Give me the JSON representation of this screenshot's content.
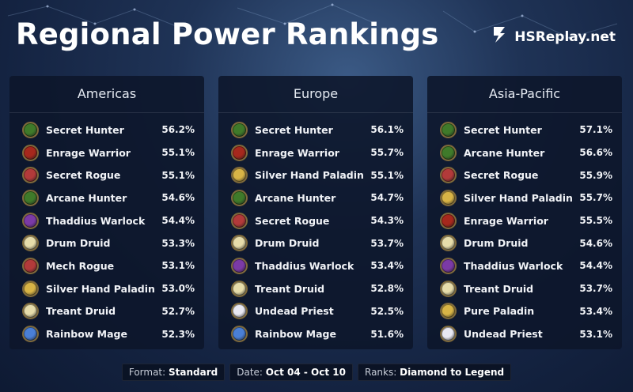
{
  "title": "Regional Power Rankings",
  "brand": {
    "name": "HSReplay.net",
    "icon": "hsreplay-logo-icon"
  },
  "colors": {
    "hunter": "#3f7a2a",
    "warrior": "#a6281d",
    "rogue": "#b23a3a",
    "warlock": "#7b3aa6",
    "druid": "#e6dcaa",
    "paladin": "#d8b446",
    "mage": "#4a7fd6",
    "priest": "#e8e8f2"
  },
  "regions": [
    {
      "name": "Americas",
      "decks": [
        {
          "name": "Secret Hunter",
          "pct": "56.2%",
          "class": "hunter"
        },
        {
          "name": "Enrage Warrior",
          "pct": "55.1%",
          "class": "warrior"
        },
        {
          "name": "Secret Rogue",
          "pct": "55.1%",
          "class": "rogue"
        },
        {
          "name": "Arcane Hunter",
          "pct": "54.6%",
          "class": "hunter"
        },
        {
          "name": "Thaddius Warlock",
          "pct": "54.4%",
          "class": "warlock"
        },
        {
          "name": "Drum Druid",
          "pct": "53.3%",
          "class": "druid"
        },
        {
          "name": "Mech Rogue",
          "pct": "53.1%",
          "class": "rogue"
        },
        {
          "name": "Silver Hand Paladin",
          "pct": "53.0%",
          "class": "paladin"
        },
        {
          "name": "Treant Druid",
          "pct": "52.7%",
          "class": "druid"
        },
        {
          "name": "Rainbow Mage",
          "pct": "52.3%",
          "class": "mage"
        }
      ]
    },
    {
      "name": "Europe",
      "decks": [
        {
          "name": "Secret Hunter",
          "pct": "56.1%",
          "class": "hunter"
        },
        {
          "name": "Enrage Warrior",
          "pct": "55.7%",
          "class": "warrior"
        },
        {
          "name": "Silver Hand Paladin",
          "pct": "55.1%",
          "class": "paladin"
        },
        {
          "name": "Arcane Hunter",
          "pct": "54.7%",
          "class": "hunter"
        },
        {
          "name": "Secret Rogue",
          "pct": "54.3%",
          "class": "rogue"
        },
        {
          "name": "Drum Druid",
          "pct": "53.7%",
          "class": "druid"
        },
        {
          "name": "Thaddius Warlock",
          "pct": "53.4%",
          "class": "warlock"
        },
        {
          "name": "Treant Druid",
          "pct": "52.8%",
          "class": "druid"
        },
        {
          "name": "Undead Priest",
          "pct": "52.5%",
          "class": "priest"
        },
        {
          "name": "Rainbow Mage",
          "pct": "51.6%",
          "class": "mage"
        }
      ]
    },
    {
      "name": "Asia-Pacific",
      "decks": [
        {
          "name": "Secret Hunter",
          "pct": "57.1%",
          "class": "hunter"
        },
        {
          "name": "Arcane Hunter",
          "pct": "56.6%",
          "class": "hunter"
        },
        {
          "name": "Secret Rogue",
          "pct": "55.9%",
          "class": "rogue"
        },
        {
          "name": "Silver Hand Paladin",
          "pct": "55.7%",
          "class": "paladin"
        },
        {
          "name": "Enrage Warrior",
          "pct": "55.5%",
          "class": "warrior"
        },
        {
          "name": "Drum Druid",
          "pct": "54.6%",
          "class": "druid"
        },
        {
          "name": "Thaddius Warlock",
          "pct": "54.4%",
          "class": "warlock"
        },
        {
          "name": "Treant Druid",
          "pct": "53.7%",
          "class": "druid"
        },
        {
          "name": "Pure Paladin",
          "pct": "53.4%",
          "class": "paladin"
        },
        {
          "name": "Undead Priest",
          "pct": "53.1%",
          "class": "priest"
        }
      ]
    }
  ],
  "footer": {
    "format_label": "Format:",
    "format_value": "Standard",
    "date_label": "Date:",
    "date_value": "Oct 04 - Oct 10",
    "ranks_label": "Ranks:",
    "ranks_value": "Diamond to Legend"
  }
}
